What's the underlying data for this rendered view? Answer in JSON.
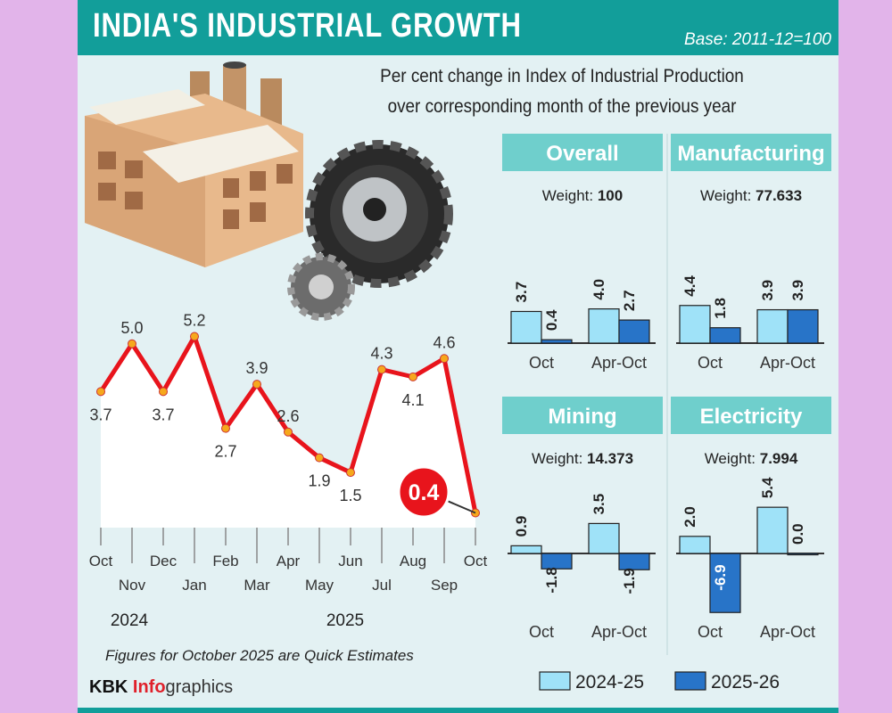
{
  "header": {
    "title": "INDIA'S INDUSTRIAL GROWTH",
    "base": "Base: 2011-12=100"
  },
  "subtitle": [
    "Per cent change in Index of Industrial Production",
    "over corresponding month of the previous year"
  ],
  "colors": {
    "header": "#129e9a",
    "line": "#e8141c",
    "bar_2024_25": "#9fe2f8",
    "bar_2025_26": "#2874c8",
    "panel_title": "#6fcfcc"
  },
  "chart_data": [
    {
      "type": "line",
      "categories": [
        "Oct",
        "Nov",
        "Dec",
        "Jan",
        "Feb",
        "Mar",
        "Apr",
        "May",
        "Jun",
        "Jul",
        "Aug",
        "Sep",
        "Oct"
      ],
      "values": [
        3.7,
        5.0,
        3.7,
        5.2,
        2.7,
        3.9,
        2.6,
        1.9,
        1.5,
        4.3,
        4.1,
        4.6,
        0.4
      ],
      "years": [
        "2024",
        "2025"
      ],
      "highlight": "0.4"
    },
    {
      "type": "bar",
      "legend": [
        "2024-25",
        "2025-26"
      ],
      "legend_placement": "bottom",
      "panels": [
        {
          "title": "Overall",
          "weight_label": "Weight: ",
          "weight": "100",
          "groups": [
            {
              "label": "Oct",
              "values": [
                3.7,
                0.4
              ]
            },
            {
              "label": "Apr-Oct",
              "values": [
                4.0,
                2.7
              ]
            }
          ]
        },
        {
          "title": "Manufacturing",
          "weight_label": "Weight: ",
          "weight": "77.633",
          "groups": [
            {
              "label": "Oct",
              "values": [
                4.4,
                1.8
              ]
            },
            {
              "label": "Apr-Oct",
              "values": [
                3.9,
                3.9
              ]
            }
          ]
        },
        {
          "title": "Mining",
          "weight_label": "Weight: ",
          "weight": "14.373",
          "groups": [
            {
              "label": "Oct",
              "values": [
                0.9,
                -1.8
              ]
            },
            {
              "label": "Apr-Oct",
              "values": [
                3.5,
                -1.9
              ]
            }
          ]
        },
        {
          "title": "Electricity",
          "weight_label": "Weight: ",
          "weight": "7.994",
          "groups": [
            {
              "label": "Oct",
              "values": [
                2.0,
                -6.9
              ]
            },
            {
              "label": "Apr-Oct",
              "values": [
                5.4,
                0.0
              ]
            }
          ]
        }
      ]
    }
  ],
  "note": "Figures for October 2025 are Quick Estimates",
  "brand": {
    "a": "KBK ",
    "b": "Info",
    "c": "graphics"
  }
}
